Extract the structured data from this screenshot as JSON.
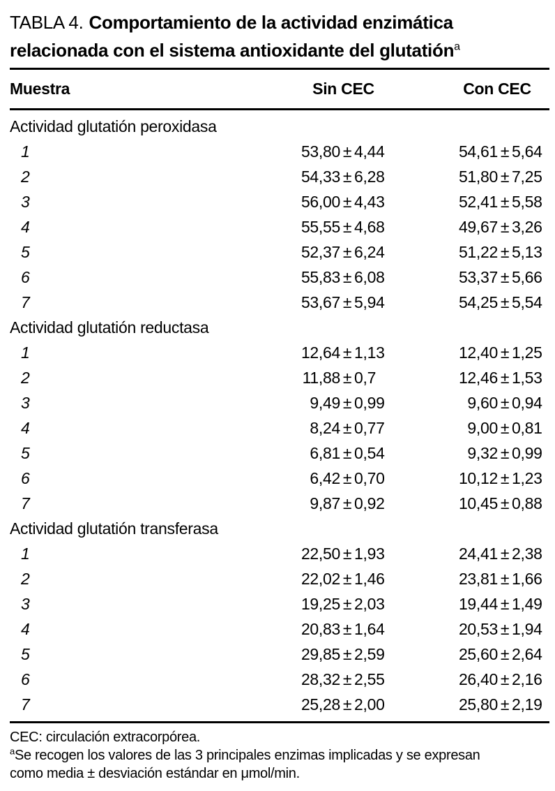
{
  "title": {
    "label": "TABLA 4.",
    "bold_line1": "Comportamiento de la actividad enzimática",
    "bold_line2": "relacionada con el sistema antioxidante del glutatión",
    "superscript": "a"
  },
  "columns": {
    "muestra": "Muestra",
    "sin": "Sin CEC",
    "con": "Con CEC"
  },
  "pm": "±",
  "sections": [
    {
      "header": "Actividad glutatión peroxidasa",
      "rows": [
        {
          "muestra": "1",
          "sin": [
            "53,80",
            "4,44"
          ],
          "con": [
            "54,61",
            "5,64"
          ]
        },
        {
          "muestra": "2",
          "sin": [
            "54,33",
            "6,28"
          ],
          "con": [
            "51,80",
            "7,25"
          ]
        },
        {
          "muestra": "3",
          "sin": [
            "56,00",
            "4,43"
          ],
          "con": [
            "52,41",
            "5,58"
          ]
        },
        {
          "muestra": "4",
          "sin": [
            "55,55",
            "4,68"
          ],
          "con": [
            "49,67",
            "3,26"
          ]
        },
        {
          "muestra": "5",
          "sin": [
            "52,37",
            "6,24"
          ],
          "con": [
            "51,22",
            "5,13"
          ]
        },
        {
          "muestra": "6",
          "sin": [
            "55,83",
            "6,08"
          ],
          "con": [
            "53,37",
            "5,66"
          ]
        },
        {
          "muestra": "7",
          "sin": [
            "53,67",
            "5,94"
          ],
          "con": [
            "54,25",
            "5,54"
          ]
        }
      ]
    },
    {
      "header": "Actividad glutatión reductasa",
      "rows": [
        {
          "muestra": "1",
          "sin": [
            "12,64",
            "1,13"
          ],
          "con": [
            "12,40",
            "1,25"
          ]
        },
        {
          "muestra": "2",
          "sin": [
            "11,88",
            "0,7"
          ],
          "con": [
            "12,46",
            "1,53"
          ]
        },
        {
          "muestra": "3",
          "sin": [
            "9,49",
            "0,99"
          ],
          "con": [
            "9,60",
            "0,94"
          ]
        },
        {
          "muestra": "4",
          "sin": [
            "8,24",
            "0,77"
          ],
          "con": [
            "9,00",
            "0,81"
          ]
        },
        {
          "muestra": "5",
          "sin": [
            "6,81",
            "0,54"
          ],
          "con": [
            "9,32",
            "0,99"
          ]
        },
        {
          "muestra": "6",
          "sin": [
            "6,42",
            "0,70"
          ],
          "con": [
            "10,12",
            "1,23"
          ]
        },
        {
          "muestra": "7",
          "sin": [
            "9,87",
            "0,92"
          ],
          "con": [
            "10,45",
            "0,88"
          ]
        }
      ]
    },
    {
      "header": "Actividad glutatión transferasa",
      "rows": [
        {
          "muestra": "1",
          "sin": [
            "22,50",
            "1,93"
          ],
          "con": [
            "24,41",
            "2,38"
          ]
        },
        {
          "muestra": "2",
          "sin": [
            "22,02",
            "1,46"
          ],
          "con": [
            "23,81",
            "1,66"
          ]
        },
        {
          "muestra": "3",
          "sin": [
            "19,25",
            "2,03"
          ],
          "con": [
            "19,44",
            "1,49"
          ]
        },
        {
          "muestra": "4",
          "sin": [
            "20,83",
            "1,64"
          ],
          "con": [
            "20,53",
            "1,94"
          ]
        },
        {
          "muestra": "5",
          "sin": [
            "29,85",
            "2,59"
          ],
          "con": [
            "25,60",
            "2,64"
          ]
        },
        {
          "muestra": "6",
          "sin": [
            "28,32",
            "2,55"
          ],
          "con": [
            "26,40",
            "2,16"
          ]
        },
        {
          "muestra": "7",
          "sin": [
            "25,28",
            "2,00"
          ],
          "con": [
            "25,80",
            "2,19"
          ]
        }
      ]
    }
  ],
  "footnotes": {
    "abbrev": "CEC: circulación extracorpórea.",
    "marker": "a",
    "line1": "Se recogen los valores de las 3 principales enzimas implicadas y se expresan",
    "line2": "como media ± desviación estándar en μmol/min."
  }
}
